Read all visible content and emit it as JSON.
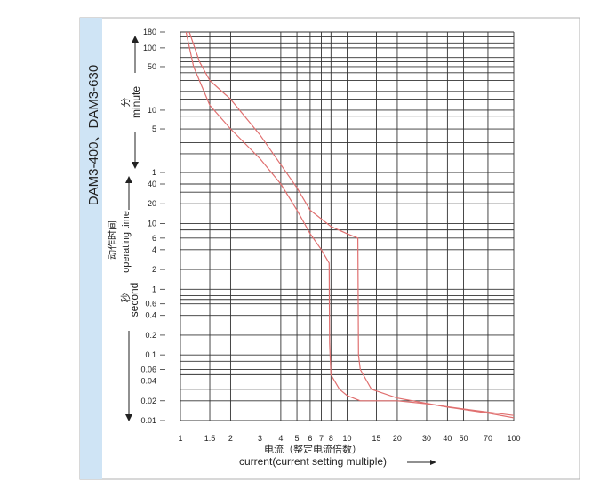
{
  "chart_data": {
    "type": "line",
    "side_title": "DAM3-400、DAM3-630",
    "xlabel_cn": "电流（整定电流倍数）",
    "xlabel": "current(current setting multiple)",
    "ylabel_time_cn": "动作时间",
    "ylabel_time": "operating time",
    "ylabel_minute_cn": "分",
    "ylabel_minute": "minute",
    "ylabel_second_cn": "秒",
    "ylabel_second": "second",
    "x_scale": "log",
    "xlim": [
      1,
      100
    ],
    "x_ticks": [
      1,
      1.5,
      2,
      3,
      4,
      5,
      6,
      7,
      8,
      10,
      15,
      20,
      30,
      40,
      50,
      70,
      100
    ],
    "x_tick_labels": [
      "1",
      "1.5",
      "2",
      "3",
      "4",
      "5",
      "6",
      "7",
      "8",
      "10",
      "15",
      "20",
      "30",
      "40",
      "50",
      "70",
      "100"
    ],
    "minute_ticks": [
      180,
      100,
      50,
      10,
      5,
      1
    ],
    "minute_tick_labels": [
      "180",
      "100",
      "50",
      "10",
      "5",
      "1"
    ],
    "second_ticks": [
      40,
      20,
      10,
      6,
      4,
      2,
      1,
      0.6,
      0.4,
      0.2,
      0.1,
      0.06,
      0.04,
      0.02,
      0.01
    ],
    "second_tick_labels": [
      "40",
      "20",
      "10",
      "6",
      "4",
      "2",
      "1",
      "0.6",
      "0.4",
      "0.2",
      "0.1",
      "0.06",
      "0.04",
      "0.02",
      "0.01"
    ],
    "extra_gridlines_minutes": [
      150,
      120,
      70,
      60,
      40,
      30,
      20,
      15,
      8,
      3,
      2
    ],
    "extra_gridlines_seconds": [
      30,
      8,
      0.8,
      0.7,
      0.5,
      0.08,
      0.05,
      0.03
    ],
    "grid": true,
    "line_color": "#e07070",
    "series": [
      {
        "x": [
          1.08,
          1.2,
          1.5,
          2,
          3,
          4,
          5,
          6,
          7,
          7.8,
          7.8,
          7.85,
          8,
          9,
          10,
          12,
          15,
          20,
          30,
          50,
          100
        ],
        "y_seconds": [
          10800,
          3000,
          720,
          300,
          100,
          40,
          16,
          7,
          4,
          2.5,
          2.5,
          0.15,
          0.05,
          0.03,
          0.024,
          0.02,
          0.02,
          0.02,
          0.018,
          0.015,
          0.012
        ]
      },
      {
        "x": [
          1.13,
          1.3,
          1.5,
          2,
          3,
          4,
          5,
          6,
          8,
          10,
          11.6,
          11.6,
          11.7,
          12,
          14,
          20,
          40,
          70,
          100
        ],
        "y_seconds": [
          10800,
          3600,
          1800,
          900,
          240,
          80,
          35,
          16,
          9,
          7,
          6,
          6,
          0.1,
          0.06,
          0.03,
          0.022,
          0.016,
          0.013,
          0.011
        ]
      }
    ]
  }
}
